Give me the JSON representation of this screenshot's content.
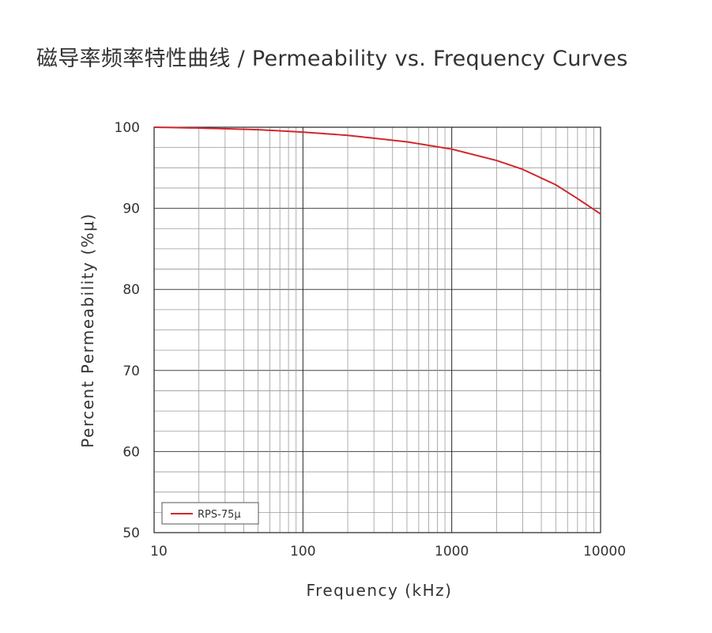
{
  "title": "磁导率频率特性曲线 / Permeability vs. Frequency Curves",
  "chart_data": {
    "type": "line",
    "xlabel": "Frequency (kHz)",
    "ylabel": "Percent Permeability (%μ)",
    "x_scale": "log",
    "xlim": [
      10,
      10000
    ],
    "ylim": [
      50,
      100
    ],
    "x_ticks": [
      "10",
      "100",
      "1000",
      "10000"
    ],
    "y_ticks": [
      "100",
      "90",
      "80",
      "70",
      "60",
      "50"
    ],
    "grid": true,
    "legend_position": "bottom-left",
    "series": [
      {
        "name": "RPS-75μ",
        "color": "#d0282e",
        "x": [
          10,
          20,
          50,
          100,
          200,
          500,
          1000,
          2000,
          3000,
          5000,
          7000,
          10000
        ],
        "y": [
          100,
          99.9,
          99.7,
          99.4,
          99.0,
          98.2,
          97.3,
          95.9,
          94.8,
          92.9,
          91.2,
          89.3
        ]
      }
    ]
  }
}
